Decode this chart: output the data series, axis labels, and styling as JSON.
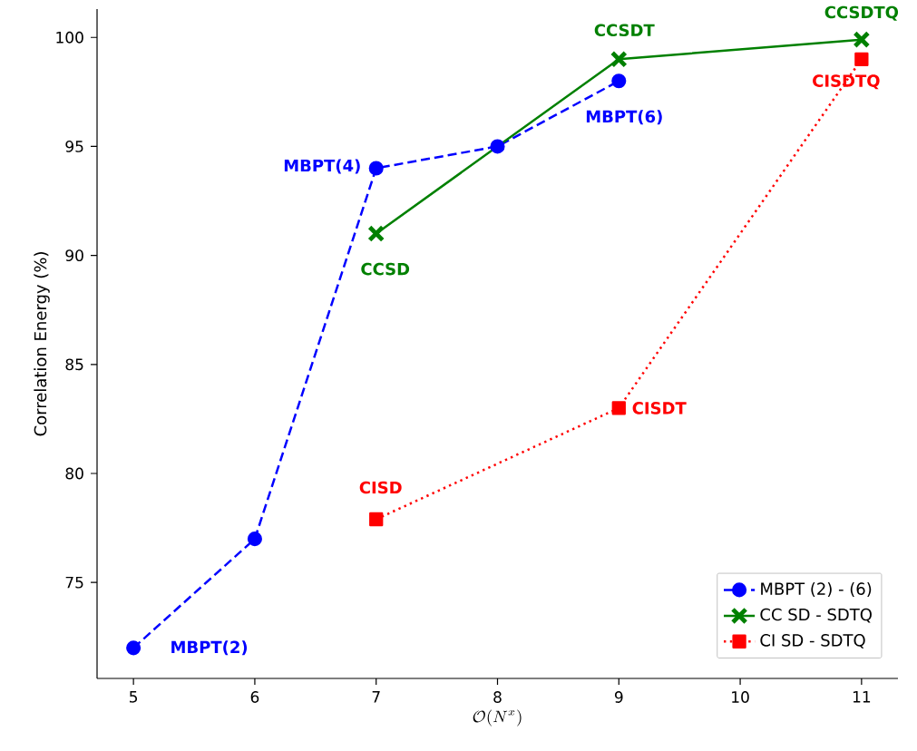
{
  "chart_data": {
    "type": "line",
    "xlabel": "\\mathcal{O}(N^x)",
    "ylabel": "Correlation Energy (%)",
    "xlim": [
      4.7,
      11.3
    ],
    "ylim": [
      70.6,
      101.3
    ],
    "xticks": [
      5,
      6,
      7,
      8,
      9,
      10,
      11
    ],
    "yticks": [
      75,
      80,
      85,
      90,
      95,
      100
    ],
    "grid": false,
    "legend": "bottom right",
    "series": [
      {
        "name": "MBPT (2) - (6)",
        "color": "#0000ff",
        "marker": "circle",
        "line_style": "dashed",
        "x": [
          5,
          6,
          7,
          8,
          9
        ],
        "values": [
          72,
          77,
          94,
          95,
          98
        ]
      },
      {
        "name": "CC SD - SDTQ",
        "color": "#008000",
        "marker": "cross",
        "line_style": "solid",
        "x": [
          7,
          9,
          11
        ],
        "values": [
          91,
          99,
          99.9
        ]
      },
      {
        "name": "CI SD - SDTQ",
        "color": "#ff0000",
        "marker": "square",
        "line_style": "dotted",
        "x": [
          7,
          9,
          11
        ],
        "values": [
          77.9,
          83,
          99
        ]
      }
    ],
    "annotations": [
      {
        "text": "MBPT(2)",
        "x": 5,
        "y": 72
      },
      {
        "text": "MBPT(4)",
        "x": 7,
        "y": 94
      },
      {
        "text": "MBPT(6)",
        "x": 9,
        "y": 98
      },
      {
        "text": "CCSD",
        "x": 7,
        "y": 91
      },
      {
        "text": "CCSDT",
        "x": 9,
        "y": 99
      },
      {
        "text": "CCSDTQ",
        "x": 11,
        "y": 99.9
      },
      {
        "text": "CISD",
        "x": 7,
        "y": 77.9
      },
      {
        "text": "CISDT",
        "x": 9,
        "y": 83
      },
      {
        "text": "CISDTQ",
        "x": 11,
        "y": 99
      }
    ]
  }
}
